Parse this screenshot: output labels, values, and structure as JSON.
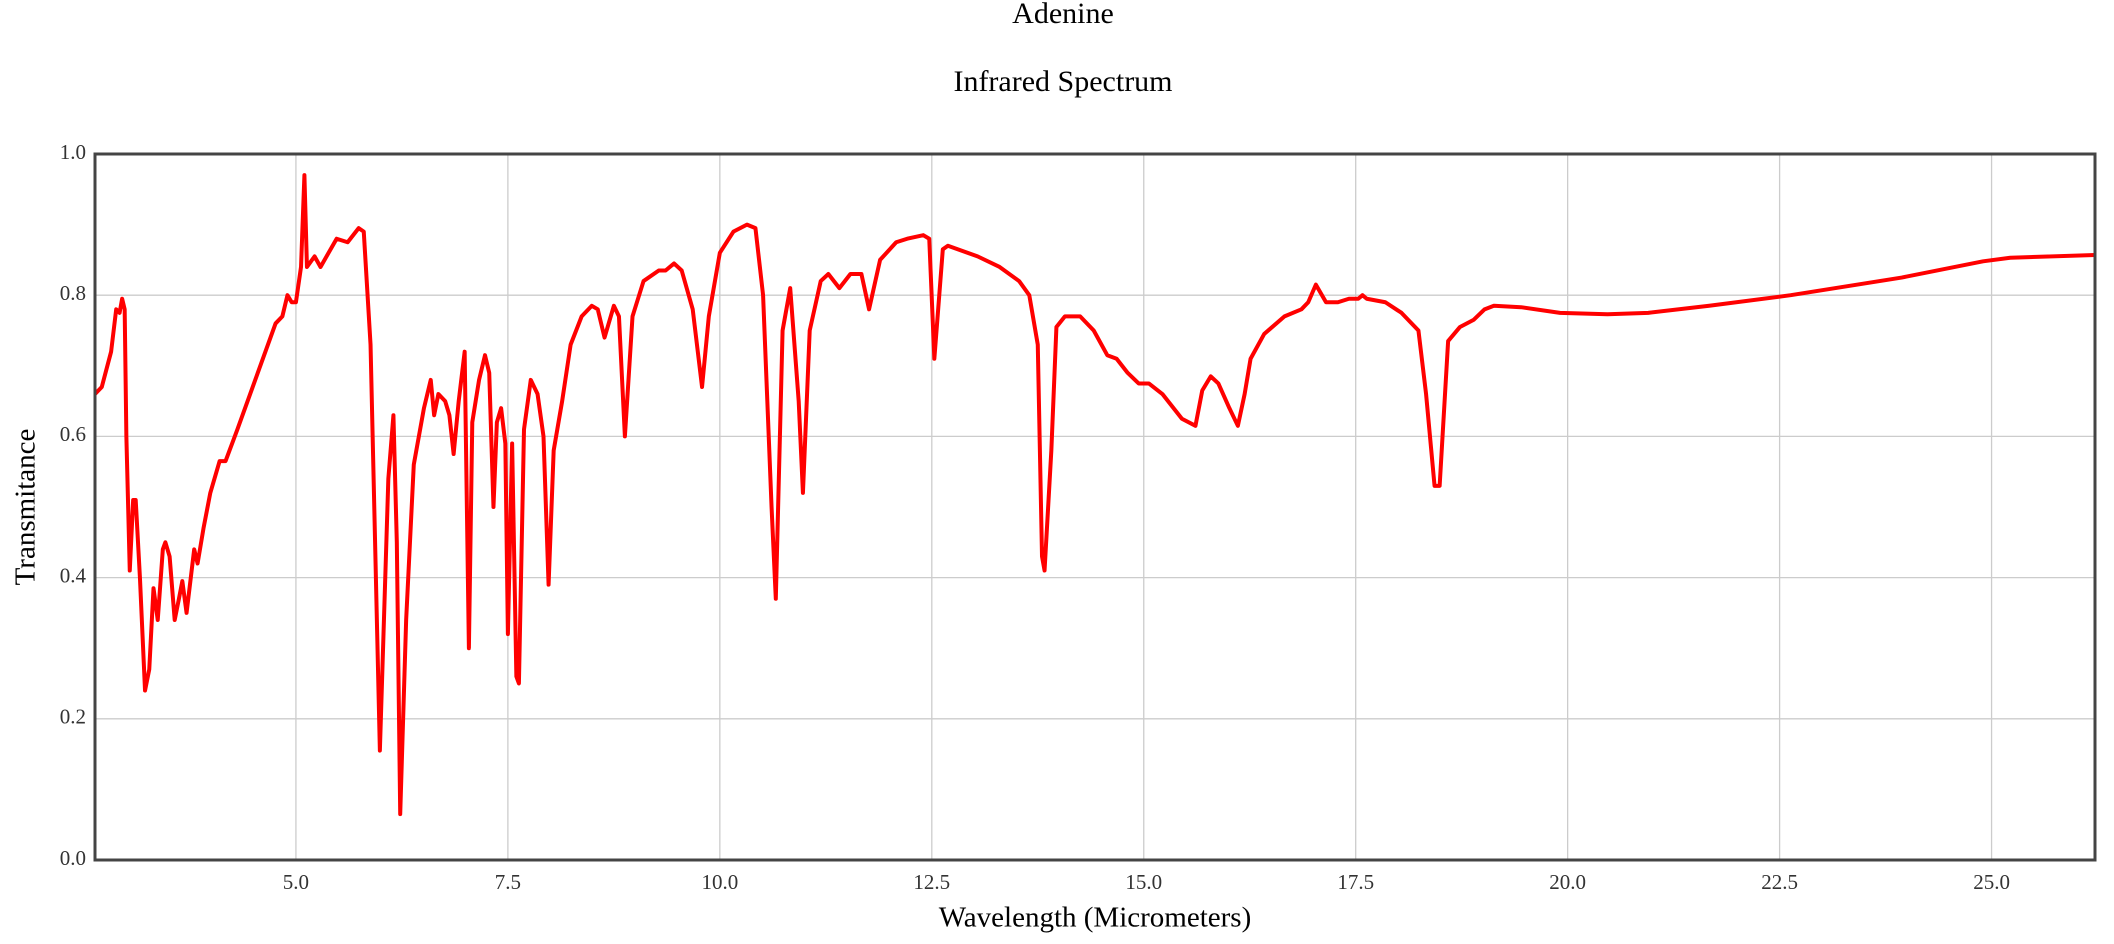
{
  "chart_data": {
    "type": "line",
    "title": "Adenine",
    "subtitle": "Infrared Spectrum",
    "x_label": "Wavelength (Micrometers)",
    "y_label": "Transmitance",
    "xlim": [
      2.63,
      26.22
    ],
    "ylim": [
      0,
      1
    ],
    "xticks": [
      {
        "value": 5,
        "label": "5.0"
      },
      7.5,
      {
        "value": 10,
        "label": "10.0"
      },
      12.5,
      {
        "value": 15,
        "label": "15.0"
      },
      17.5,
      {
        "value": 20,
        "label": "20.0"
      },
      22.5,
      {
        "value": 25,
        "label": "25.0"
      }
    ],
    "yticks": [
      {
        "value": 0,
        "label": "0.0"
      },
      0.2,
      0.4,
      0.6,
      0.8,
      {
        "value": 1,
        "label": "1.0"
      }
    ],
    "grid": true,
    "x": [
      2.63,
      2.71,
      2.82,
      2.88,
      2.92,
      2.95,
      2.98,
      3.0,
      3.04,
      3.08,
      3.11,
      3.16,
      3.22,
      3.27,
      3.32,
      3.37,
      3.43,
      3.46,
      3.51,
      3.57,
      3.62,
      3.66,
      3.71,
      3.8,
      3.84,
      3.91,
      3.99,
      4.1,
      4.17,
      4.31,
      4.55,
      4.76,
      4.84,
      4.9,
      4.95,
      5.0,
      5.06,
      5.1,
      5.13,
      5.22,
      5.29,
      5.48,
      5.61,
      5.74,
      5.8,
      5.88,
      5.99,
      6.09,
      6.15,
      6.19,
      6.23,
      6.3,
      6.39,
      6.51,
      6.59,
      6.63,
      6.68,
      6.76,
      6.81,
      6.86,
      6.92,
      6.99,
      7.04,
      7.08,
      7.16,
      7.23,
      7.28,
      7.33,
      7.37,
      7.42,
      7.47,
      7.5,
      7.55,
      7.6,
      7.63,
      7.69,
      7.77,
      7.85,
      7.92,
      7.98,
      8.04,
      8.14,
      8.24,
      8.37,
      8.49,
      8.56,
      8.64,
      8.75,
      8.81,
      8.88,
      8.97,
      9.1,
      9.28,
      9.36,
      9.46,
      9.55,
      9.68,
      9.79,
      9.87,
      10.0,
      10.16,
      10.32,
      10.42,
      10.51,
      10.61,
      10.66,
      10.74,
      10.83,
      10.93,
      10.98,
      11.06,
      11.19,
      11.28,
      11.41,
      11.54,
      11.67,
      11.76,
      11.89,
      12.08,
      12.21,
      12.4,
      12.47,
      12.53,
      12.63,
      12.69,
      13.04,
      13.3,
      13.53,
      13.65,
      13.75,
      13.8,
      13.83,
      13.91,
      13.97,
      14.07,
      14.25,
      14.41,
      14.57,
      14.68,
      14.81,
      14.94,
      15.06,
      15.22,
      15.45,
      15.61,
      15.69,
      15.79,
      15.88,
      16.01,
      16.11,
      16.19,
      16.26,
      16.42,
      16.66,
      16.86,
      16.94,
      17.03,
      17.15,
      17.29,
      17.42,
      17.53,
      17.58,
      17.63,
      17.85,
      18.04,
      18.24,
      18.33,
      18.43,
      18.49,
      18.59,
      18.73,
      18.89,
      19.02,
      19.13,
      19.45,
      19.91,
      20.47,
      20.95,
      21.67,
      22.63,
      23.94,
      24.9,
      25.22,
      26.22
    ],
    "series": [
      {
        "name": "Adenine",
        "color": "#ff0000",
        "values": [
          0.66,
          0.67,
          0.72,
          0.78,
          0.775,
          0.795,
          0.78,
          0.6,
          0.41,
          0.51,
          0.51,
          0.4,
          0.24,
          0.27,
          0.385,
          0.34,
          0.44,
          0.45,
          0.43,
          0.34,
          0.37,
          0.395,
          0.35,
          0.44,
          0.42,
          0.47,
          0.52,
          0.565,
          0.565,
          0.61,
          0.69,
          0.76,
          0.77,
          0.8,
          0.79,
          0.79,
          0.84,
          0.97,
          0.84,
          0.855,
          0.84,
          0.88,
          0.875,
          0.895,
          0.89,
          0.73,
          0.155,
          0.54,
          0.63,
          0.45,
          0.065,
          0.34,
          0.56,
          0.64,
          0.68,
          0.63,
          0.66,
          0.65,
          0.63,
          0.575,
          0.65,
          0.72,
          0.3,
          0.62,
          0.68,
          0.715,
          0.69,
          0.5,
          0.62,
          0.64,
          0.59,
          0.32,
          0.59,
          0.26,
          0.25,
          0.61,
          0.68,
          0.66,
          0.6,
          0.39,
          0.58,
          0.65,
          0.73,
          0.77,
          0.785,
          0.78,
          0.74,
          0.785,
          0.77,
          0.6,
          0.77,
          0.82,
          0.835,
          0.835,
          0.845,
          0.835,
          0.78,
          0.67,
          0.77,
          0.86,
          0.89,
          0.9,
          0.895,
          0.8,
          0.5,
          0.37,
          0.75,
          0.81,
          0.65,
          0.52,
          0.75,
          0.82,
          0.83,
          0.81,
          0.83,
          0.83,
          0.78,
          0.85,
          0.875,
          0.88,
          0.885,
          0.88,
          0.71,
          0.865,
          0.87,
          0.855,
          0.84,
          0.82,
          0.8,
          0.73,
          0.43,
          0.41,
          0.58,
          0.755,
          0.77,
          0.77,
          0.75,
          0.715,
          0.71,
          0.69,
          0.675,
          0.675,
          0.66,
          0.625,
          0.615,
          0.665,
          0.685,
          0.675,
          0.64,
          0.615,
          0.66,
          0.71,
          0.745,
          0.77,
          0.78,
          0.79,
          0.815,
          0.79,
          0.79,
          0.795,
          0.795,
          0.8,
          0.795,
          0.79,
          0.775,
          0.75,
          0.66,
          0.53,
          0.53,
          0.735,
          0.755,
          0.765,
          0.78,
          0.785,
          0.783,
          0.775,
          0.773,
          0.775,
          0.785,
          0.8,
          0.825,
          0.848,
          0.853,
          0.857
        ]
      }
    ]
  }
}
